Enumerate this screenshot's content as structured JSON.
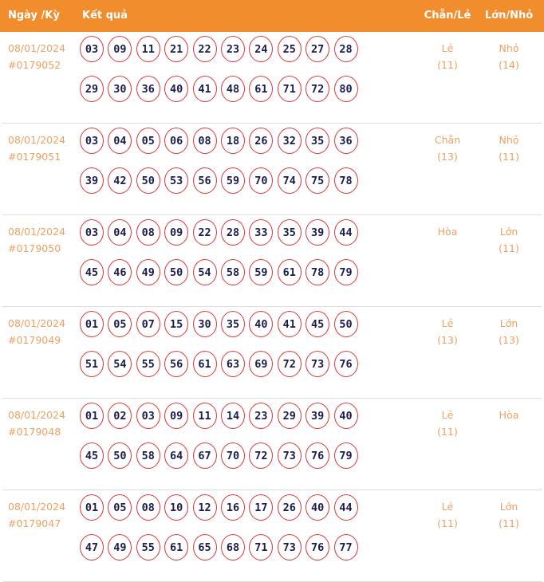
{
  "header": {
    "date": "Ngày /Kỳ",
    "results": "Kết quả",
    "chan_le": "Chẵn/Lẻ",
    "lon_nho": "Lớn/Nhỏ"
  },
  "colors": {
    "header_bg": "#f28d2e",
    "ball_border": "#e0353a",
    "ball_text": "#1b1b4d",
    "text_accent": "#f0a060"
  },
  "draws": [
    {
      "date": "08/01/2024",
      "id": "#0179052",
      "numbers": [
        "03",
        "09",
        "11",
        "21",
        "22",
        "23",
        "24",
        "25",
        "27",
        "28",
        "29",
        "30",
        "36",
        "40",
        "41",
        "48",
        "61",
        "71",
        "72",
        "80"
      ],
      "chan_le": "Lẻ",
      "chan_le_count": "(11)",
      "lon_nho": "Nhỏ",
      "lon_nho_count": "(14)"
    },
    {
      "date": "08/01/2024",
      "id": "#0179051",
      "numbers": [
        "03",
        "04",
        "05",
        "06",
        "08",
        "18",
        "26",
        "32",
        "35",
        "36",
        "39",
        "42",
        "50",
        "53",
        "56",
        "59",
        "70",
        "74",
        "75",
        "78"
      ],
      "chan_le": "Chẵn",
      "chan_le_count": "(13)",
      "lon_nho": "Nhỏ",
      "lon_nho_count": "(11)"
    },
    {
      "date": "08/01/2024",
      "id": "#0179050",
      "numbers": [
        "03",
        "04",
        "08",
        "09",
        "22",
        "28",
        "33",
        "35",
        "39",
        "44",
        "45",
        "46",
        "49",
        "50",
        "54",
        "58",
        "59",
        "61",
        "78",
        "79"
      ],
      "chan_le": "Hòa",
      "chan_le_count": "",
      "lon_nho": "Lớn",
      "lon_nho_count": "(11)"
    },
    {
      "date": "08/01/2024",
      "id": "#0179049",
      "numbers": [
        "01",
        "05",
        "07",
        "15",
        "30",
        "35",
        "40",
        "41",
        "45",
        "50",
        "51",
        "54",
        "55",
        "56",
        "61",
        "63",
        "69",
        "72",
        "73",
        "76"
      ],
      "chan_le": "Lẻ",
      "chan_le_count": "(13)",
      "lon_nho": "Lớn",
      "lon_nho_count": "(13)"
    },
    {
      "date": "08/01/2024",
      "id": "#0179048",
      "numbers": [
        "01",
        "02",
        "03",
        "09",
        "11",
        "14",
        "23",
        "29",
        "39",
        "40",
        "45",
        "50",
        "58",
        "64",
        "67",
        "70",
        "72",
        "73",
        "76",
        "79"
      ],
      "chan_le": "Lẻ",
      "chan_le_count": "(11)",
      "lon_nho": "Hòa",
      "lon_nho_count": ""
    },
    {
      "date": "08/01/2024",
      "id": "#0179047",
      "numbers": [
        "01",
        "05",
        "08",
        "10",
        "12",
        "16",
        "17",
        "26",
        "40",
        "44",
        "47",
        "49",
        "55",
        "61",
        "65",
        "68",
        "71",
        "73",
        "76",
        "77"
      ],
      "chan_le": "Lẻ",
      "chan_le_count": "(11)",
      "lon_nho": "Lớn",
      "lon_nho_count": "(11)"
    }
  ]
}
